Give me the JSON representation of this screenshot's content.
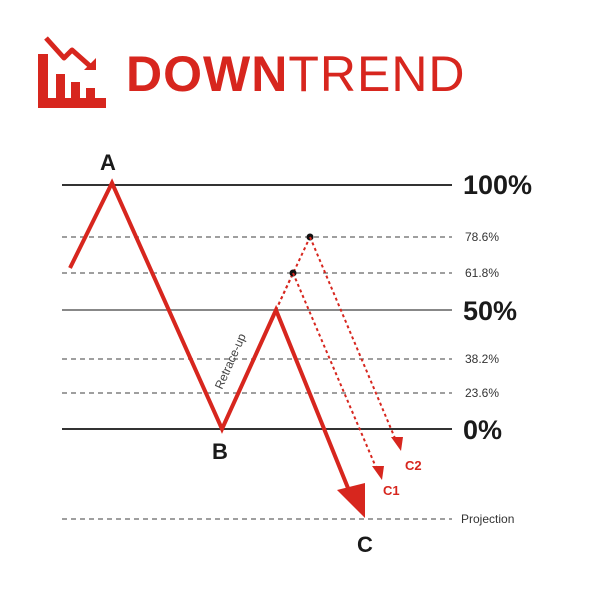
{
  "logo": {
    "word_bold": "DOWN",
    "word_light": "TREND",
    "icon": "downtrend-chart-icon",
    "color": "#d7261e"
  },
  "levels": {
    "l100": "100%",
    "l786": "78.6%",
    "l618": "61.8%",
    "l50": "50%",
    "l382": "38.2%",
    "l236": "23.6%",
    "l0": "0%",
    "projection": "Projection"
  },
  "points": {
    "a": "A",
    "b": "B",
    "c": "C",
    "c1": "C1",
    "c2": "C2"
  },
  "annotation": {
    "retrace": "Retrace-up"
  },
  "colors": {
    "trend_line": "#d7261e",
    "level_line": "#333333"
  }
}
